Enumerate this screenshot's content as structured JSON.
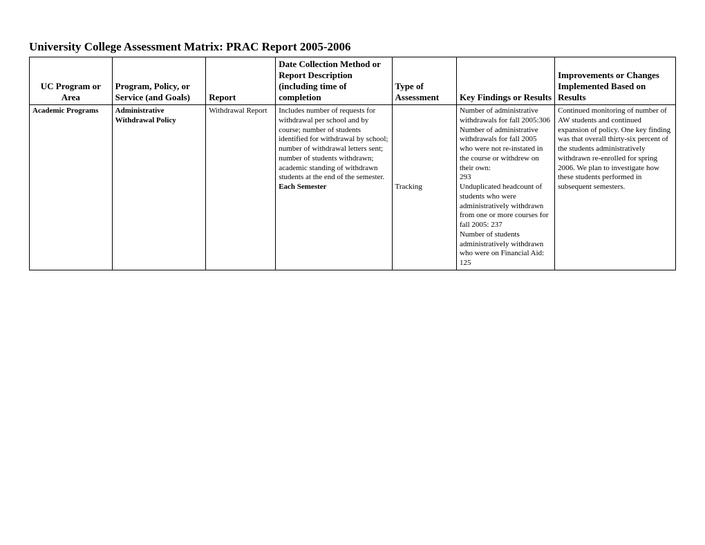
{
  "title": "University College Assessment Matrix: PRAC Report 2005-2006",
  "table": {
    "columns": [
      "UC Program or Area",
      "Program, Policy, or Service (and Goals)",
      "Report",
      "Date Collection Method or Report Description (including time of completion",
      "Type of Assessment",
      "Key Findings or Results",
      "Improvements or Changes Implemented Based on Results"
    ],
    "row": {
      "program_area": "Academic Programs",
      "policy": "Administrative Withdrawal Policy",
      "report": "Withdrawal Report",
      "description_main": "Includes number of requests for withdrawal per school and by course; number of students identified for withdrawal by school; number of withdrawal letters sent; number of students withdrawn; academic standing of withdrawn students at the end of the semester.",
      "description_bold": "Each Semester",
      "assessment_type": "Tracking",
      "findings": "Number of administrative withdrawals for fall 2005:306\nNumber of administrative withdrawals for fall 2005 who were not re-instated in the course or withdrew on their own:\n293\nUnduplicated headcount of students who were administratively withdrawn from one or more courses for fall 2005: 237\nNumber of students administratively withdrawn who were on Financial Aid: 125",
      "improvements": "Continued monitoring of number of AW students and continued expansion of policy.  One key finding was that overall thirty-six percent of the students administratively withdrawn re-enrolled for spring 2006. We plan to investigate how these students performed in subsequent semesters."
    }
  }
}
